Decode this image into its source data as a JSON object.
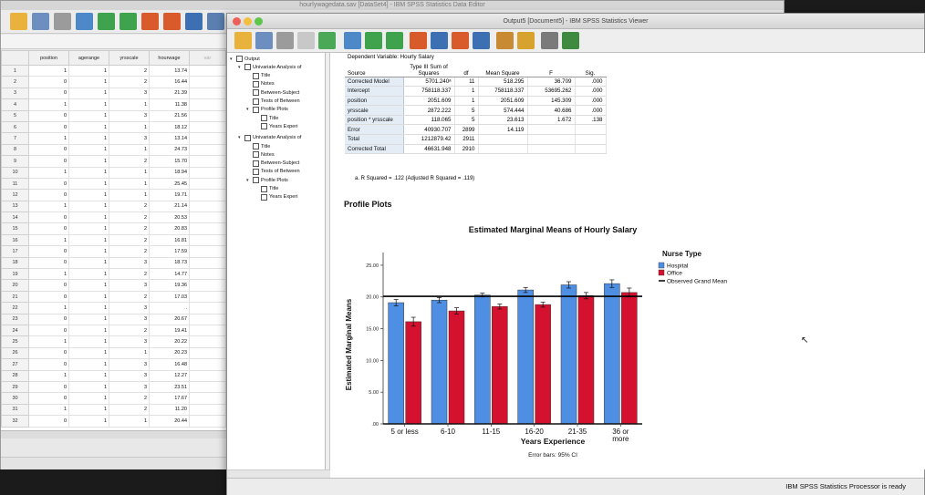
{
  "editor": {
    "title": "hourlywagedata.sav [DataSet4] - IBM SPSS Statistics Data Editor",
    "columns": [
      "position",
      "agerange",
      "yrsscale",
      "hourwage",
      "var"
    ],
    "rows": [
      [
        "1",
        "1",
        "1",
        "2",
        "13.74"
      ],
      [
        "2",
        "0",
        "1",
        "2",
        "16.44"
      ],
      [
        "3",
        "0",
        "1",
        "3",
        "21.39"
      ],
      [
        "4",
        "1",
        "1",
        "1",
        "11.38"
      ],
      [
        "5",
        "0",
        "1",
        "3",
        "21.56"
      ],
      [
        "6",
        "0",
        "1",
        "1",
        "18.12"
      ],
      [
        "7",
        "1",
        "1",
        "3",
        "13.14"
      ],
      [
        "8",
        "0",
        "1",
        "1",
        "24.73"
      ],
      [
        "9",
        "0",
        "1",
        "2",
        "15.70"
      ],
      [
        "10",
        "1",
        "1",
        "1",
        "18.94"
      ],
      [
        "11",
        "0",
        "1",
        "1",
        "25.45"
      ],
      [
        "12",
        "0",
        "1",
        "1",
        "19.71"
      ],
      [
        "13",
        "1",
        "1",
        "2",
        "21.14"
      ],
      [
        "14",
        "0",
        "1",
        "2",
        "20.53"
      ],
      [
        "15",
        "0",
        "1",
        "2",
        "20.83"
      ],
      [
        "16",
        "1",
        "1",
        "2",
        "16.81"
      ],
      [
        "17",
        "0",
        "1",
        "2",
        "17.59"
      ],
      [
        "18",
        "0",
        "1",
        "3",
        "18.73"
      ],
      [
        "19",
        "1",
        "1",
        "2",
        "14.77"
      ],
      [
        "20",
        "0",
        "1",
        "3",
        "19.36"
      ],
      [
        "21",
        "0",
        "1",
        "2",
        "17.03"
      ],
      [
        "22",
        "1",
        "1",
        "3",
        "."
      ],
      [
        "23",
        "0",
        "1",
        "3",
        "20.67"
      ],
      [
        "24",
        "0",
        "1",
        "2",
        "19.41"
      ],
      [
        "25",
        "1",
        "1",
        "3",
        "20.22"
      ],
      [
        "26",
        "0",
        "1",
        "1",
        "20.23"
      ],
      [
        "27",
        "0",
        "1",
        "3",
        "16.48"
      ],
      [
        "28",
        "1",
        "1",
        "3",
        "12.27"
      ],
      [
        "29",
        "0",
        "1",
        "3",
        "23.51"
      ],
      [
        "30",
        "0",
        "1",
        "2",
        "17.67"
      ],
      [
        "31",
        "1",
        "1",
        "2",
        "11.20"
      ],
      [
        "32",
        "0",
        "1",
        "1",
        "20.44"
      ]
    ]
  },
  "viewer": {
    "title": "Output5 [Document5] - IBM SPSS Statistics Viewer",
    "status": "IBM SPSS Statistics Processor is ready",
    "outline": [
      {
        "label": "Output",
        "indent": 0,
        "tri": "▾"
      },
      {
        "label": "Univariate Analysis of",
        "indent": 1,
        "tri": "▾"
      },
      {
        "label": "Title",
        "indent": 2,
        "tri": ""
      },
      {
        "label": "Notes",
        "indent": 2,
        "tri": ""
      },
      {
        "label": "Between-Subject",
        "indent": 2,
        "tri": ""
      },
      {
        "label": "Tests of Between",
        "indent": 2,
        "tri": ""
      },
      {
        "label": "Profile Plots",
        "indent": 2,
        "tri": "▾"
      },
      {
        "label": "Title",
        "indent": 3,
        "tri": ""
      },
      {
        "label": "Years Experi",
        "indent": 3,
        "tri": ""
      },
      {
        "label": "Univariate Analysis of",
        "indent": 1,
        "tri": "▾"
      },
      {
        "label": "Title",
        "indent": 2,
        "tri": ""
      },
      {
        "label": "Notes",
        "indent": 2,
        "tri": ""
      },
      {
        "label": "Between-Subject",
        "indent": 2,
        "tri": ""
      },
      {
        "label": "Tests of Between",
        "indent": 2,
        "tri": ""
      },
      {
        "label": "Profile Plots",
        "indent": 2,
        "tri": "▾"
      },
      {
        "label": "Title",
        "indent": 3,
        "tri": ""
      },
      {
        "label": "Years Experi",
        "indent": 3,
        "tri": ""
      }
    ]
  },
  "anova": {
    "dependent": "Dependent Variable:   Hourly Salary",
    "headers": [
      "Source",
      "Type III Sum of Squares",
      "df",
      "Mean Square",
      "F",
      "Sig."
    ],
    "rows": [
      [
        "Corrected Model",
        "5701.240ᵃ",
        "11",
        "518.295",
        "36.709",
        ".000"
      ],
      [
        "Intercept",
        "758118.337",
        "1",
        "758118.337",
        "53695.262",
        ".000"
      ],
      [
        "position",
        "2051.609",
        "1",
        "2051.609",
        "145.309",
        ".000"
      ],
      [
        "yrsscale",
        "2872.222",
        "5",
        "574.444",
        "40.686",
        ".000"
      ],
      [
        "position * yrsscale",
        "118.065",
        "5",
        "23.613",
        "1.672",
        ".138"
      ],
      [
        "Error",
        "40930.707",
        "2899",
        "14.119",
        "",
        ""
      ],
      [
        "Total",
        "1212879.42",
        "2911",
        "",
        "",
        ""
      ],
      [
        "Corrected Total",
        "46631.948",
        "2910",
        "",
        "",
        ""
      ]
    ],
    "footnote": "a. R Squared = .122 (Adjusted R Squared = .119)"
  },
  "profile_plots_heading": "Profile Plots",
  "chart_data": {
    "type": "bar",
    "title": "Estimated Marginal Means of Hourly Salary",
    "xlabel": "Years Experience",
    "ylabel": "Estimated Marginal Means",
    "note": "Error bars: 95% CI",
    "categories": [
      "5 or less",
      "6-10",
      "11-15",
      "16-20",
      "21-35",
      "36 or more"
    ],
    "ylim": [
      0,
      27
    ],
    "yticks": [
      ".00",
      "5.00",
      "10.00",
      "15.00",
      "20.00",
      "25.00"
    ],
    "ytick_values": [
      0,
      5,
      10,
      15,
      20,
      25
    ],
    "legend_title": "Nurse Type",
    "legend_position": "right",
    "series": [
      {
        "name": "Hospital",
        "color": "#4f8fe3",
        "values": [
          19.1,
          19.5,
          20.3,
          21.1,
          21.9,
          22.1
        ],
        "err": [
          0.5,
          0.4,
          0.3,
          0.4,
          0.5,
          0.6
        ]
      },
      {
        "name": "Office",
        "color": "#d4112e",
        "values": [
          16.1,
          17.8,
          18.5,
          18.8,
          20.2,
          20.7
        ],
        "err": [
          0.7,
          0.5,
          0.4,
          0.4,
          0.5,
          0.7
        ]
      }
    ],
    "reference_line": {
      "name": "Observed Grand Mean",
      "value": 20.1,
      "color": "#000000"
    }
  }
}
